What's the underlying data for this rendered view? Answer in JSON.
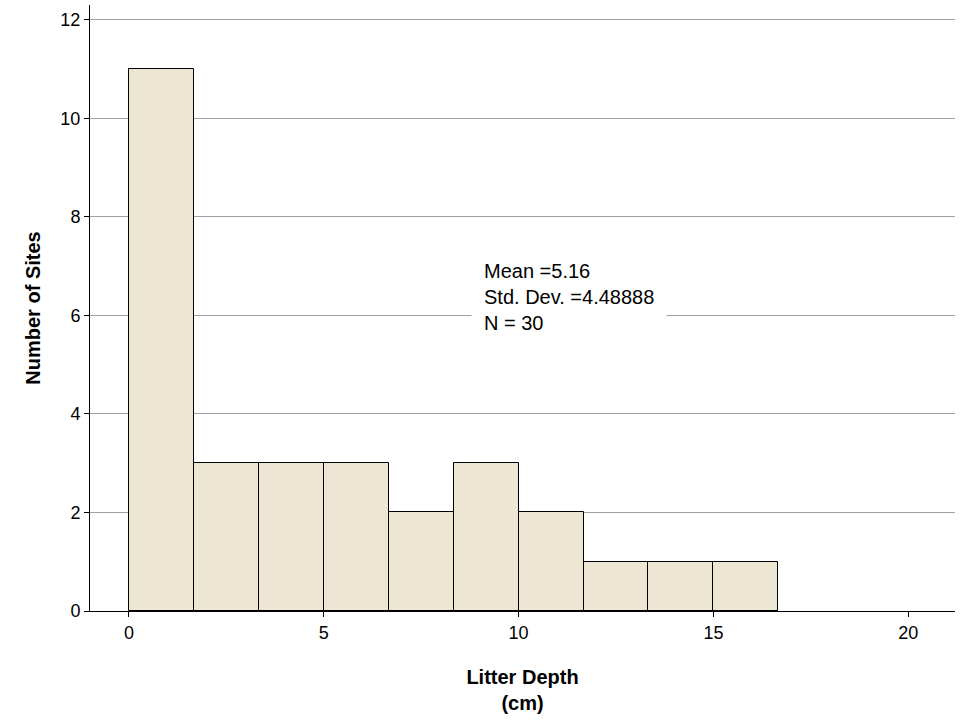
{
  "chart_data": {
    "type": "histogram",
    "x_label": "Litter Depth\n(cm)",
    "y_label": "Number of Sites",
    "bins": [
      0,
      1.67,
      3.33,
      5,
      6.67,
      8.33,
      10,
      11.67,
      13.33,
      15,
      16.67
    ],
    "values": [
      11,
      3,
      3,
      3,
      2,
      3,
      2,
      1,
      1,
      1
    ],
    "color": "#ede6d3",
    "xlim": [
      -1,
      21.2
    ],
    "xticks": [
      0,
      5,
      10,
      15,
      20
    ],
    "ylim": [
      0,
      12.3
    ],
    "yticks": [
      0,
      2,
      4,
      6,
      8,
      10,
      12
    ],
    "grid": true,
    "annotations": [
      "Mean =5.16",
      "Std. Dev. =4.48888",
      "N = 30"
    ]
  }
}
